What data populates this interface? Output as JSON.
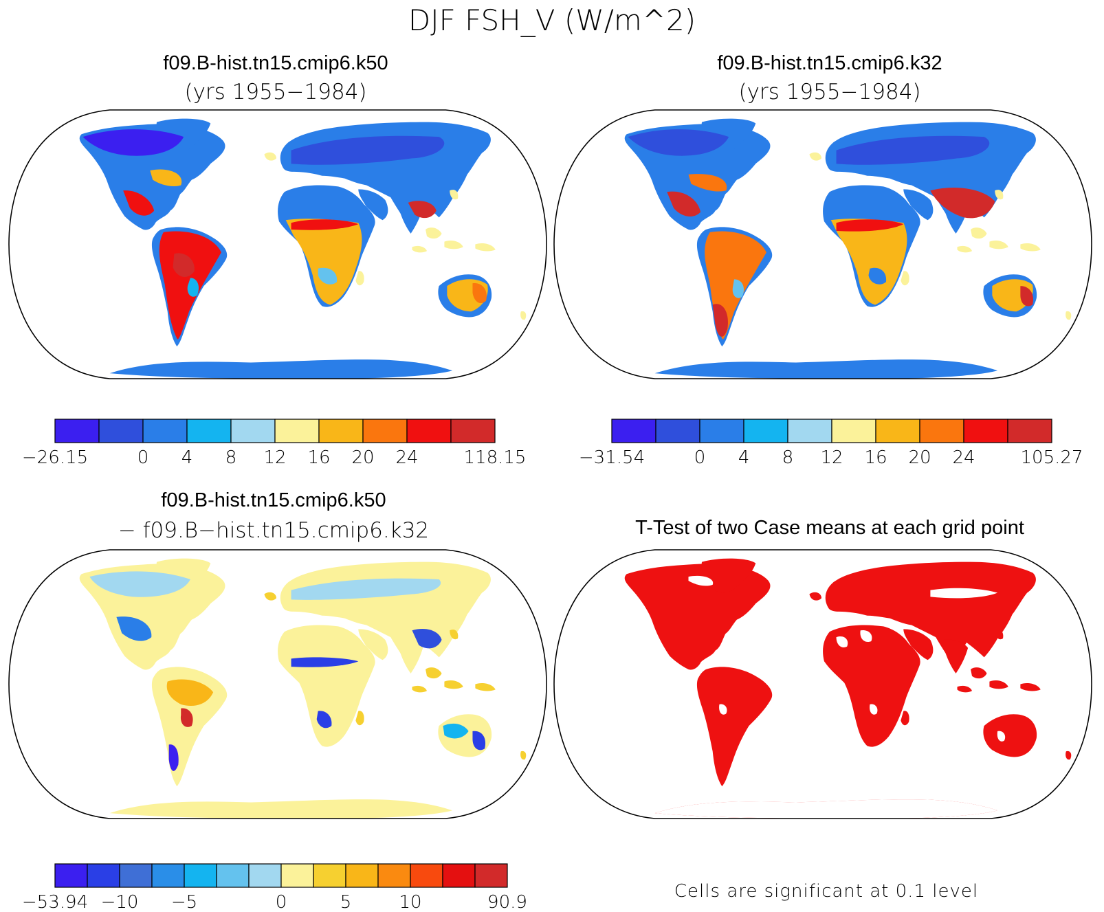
{
  "figure": {
    "title": "DJF FSH_V (W/m^2)"
  },
  "panels": [
    {
      "id": "case1",
      "title": "f09.B-hist.tn15.cmip6.k50",
      "subtitle": "(yrs 1955−1984)",
      "colorbar": {
        "colors": [
          "#3b1ff0",
          "#2f4fdc",
          "#2a7ee8",
          "#14b4f0",
          "#a2d8f0",
          "#fbf29a",
          "#f9b618",
          "#fa760e",
          "#f01010",
          "#d22a2a"
        ],
        "labels": [
          "−26.15",
          "0",
          "4",
          "8",
          "12",
          "16",
          "20",
          "24",
          "118.15"
        ],
        "label_boundary_index": [
          0,
          2,
          3,
          4,
          5,
          6,
          7,
          8,
          10
        ]
      }
    },
    {
      "id": "case2",
      "title": "f09.B-hist.tn15.cmip6.k32",
      "subtitle": "(yrs 1955−1984)",
      "colorbar": {
        "colors": [
          "#3b1ff0",
          "#2f4fdc",
          "#2a7ee8",
          "#14b4f0",
          "#a2d8f0",
          "#fbf29a",
          "#f9b618",
          "#fa760e",
          "#f01010",
          "#d22a2a"
        ],
        "labels": [
          "−31.54",
          "0",
          "4",
          "8",
          "12",
          "16",
          "20",
          "24",
          "105.27"
        ],
        "label_boundary_index": [
          0,
          2,
          3,
          4,
          5,
          6,
          7,
          8,
          10
        ]
      }
    },
    {
      "id": "diff",
      "title": "f09.B-hist.tn15.cmip6.k50",
      "subtitle": "− f09.B−hist.tn15.cmip6.k32",
      "colorbar": {
        "colors": [
          "#3b1ff0",
          "#2a3fe6",
          "#3f6fd6",
          "#2a8ee8",
          "#14b4f0",
          "#64c2ee",
          "#a2d8f0",
          "#fbf29a",
          "#f6d030",
          "#f9b618",
          "#fa8a10",
          "#f84a0e",
          "#e41010",
          "#d22a2a"
        ],
        "labels": [
          "−53.94",
          "−10",
          "−5",
          "0",
          "5",
          "10",
          "90.9"
        ],
        "label_boundary_index": [
          0,
          2,
          4,
          7,
          9,
          11,
          14
        ]
      }
    },
    {
      "id": "ttest",
      "title": "T-Test of two Case means at each grid point",
      "note": "Cells are significant at 0.1 level",
      "significant_color": "#ee1111"
    }
  ]
}
